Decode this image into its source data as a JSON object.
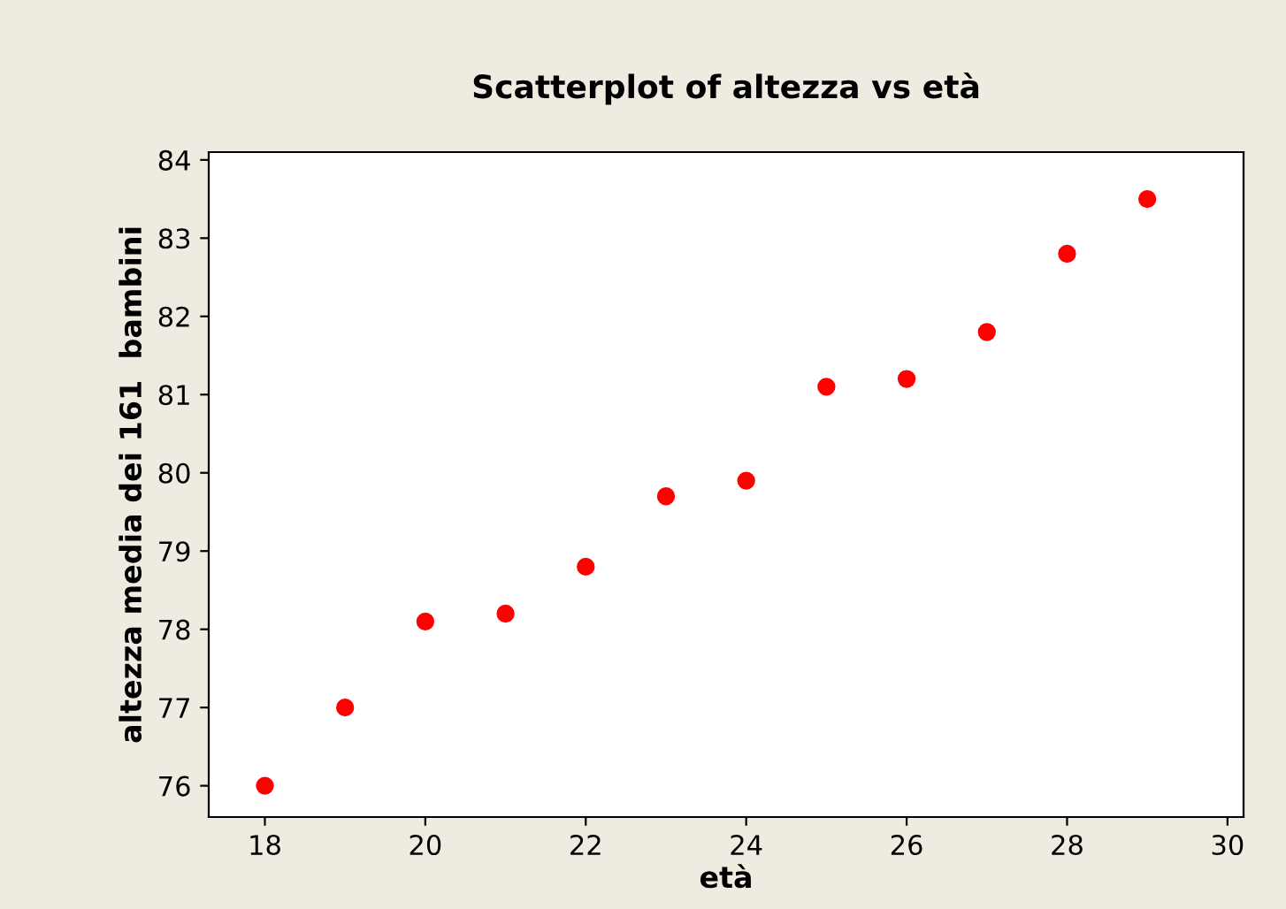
{
  "chart_data": {
    "type": "scatter",
    "title": "Scatterplot of altezza vs età",
    "xlabel": "età",
    "ylabel": "altezza media dei 161  bambini",
    "x": [
      18,
      19,
      20,
      21,
      22,
      23,
      24,
      25,
      26,
      27,
      28,
      29
    ],
    "series": [
      {
        "color": "#ff0000",
        "values": [
          76.0,
          77.0,
          78.1,
          78.2,
          78.8,
          79.7,
          79.9,
          81.1,
          81.2,
          81.8,
          82.8,
          83.5
        ]
      }
    ],
    "marker": "circle",
    "xlim": [
      17.3,
      30.2
    ],
    "xticks": [
      18,
      20,
      22,
      24,
      26,
      28,
      30
    ],
    "ylim": [
      75.6,
      84.1
    ],
    "yticks": [
      76,
      77,
      78,
      79,
      80,
      81,
      82,
      83,
      84
    ],
    "grid": false,
    "legend": false
  }
}
